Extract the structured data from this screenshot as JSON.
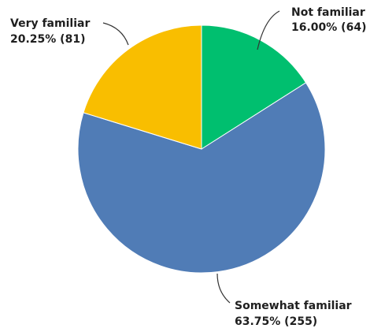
{
  "chart_data": {
    "type": "pie",
    "slices": [
      {
        "label": "Not familiar",
        "percent": 16.0,
        "count": 64,
        "percent_text": "16.00% (64)",
        "color": "#00BF6F"
      },
      {
        "label": "Somewhat familiar",
        "percent": 63.75,
        "count": 255,
        "percent_text": "63.75% (255)",
        "color": "#507CB6"
      },
      {
        "label": "Very familiar",
        "percent": 20.25,
        "count": 81,
        "percent_text": "20.25% (81)",
        "color": "#F9BE00"
      }
    ],
    "start_angle_deg": 0,
    "direction": "clockwise",
    "title": ""
  }
}
